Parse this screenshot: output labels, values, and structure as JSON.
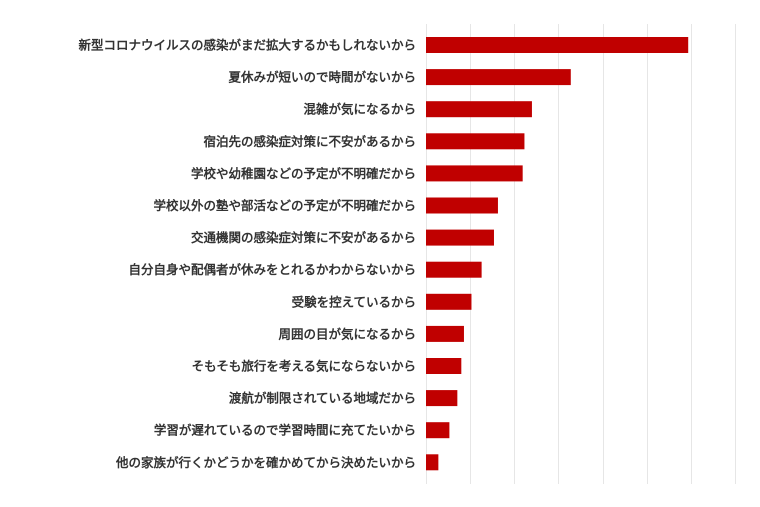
{
  "chart_data": {
    "type": "bar",
    "orientation": "horizontal",
    "categories": [
      "新型コロナウイルスの感染がまだ拡大するかもしれないから",
      "夏休みが短いので時間がないから",
      "混雑が気になるから",
      "宿泊先の感染症対策に不安があるから",
      "学校や幼稚園などの予定が不明確だから",
      "学校以外の塾や部活などの予定が不明確だから",
      "交通機関の感染症対策に不安があるから",
      "自分自身や配偶者が休みをとれるかわからないから",
      "受験を控えているから",
      "周囲の目が気になるから",
      "そもそも旅行を考える気にならないから",
      "渡航が制限されている地域だから",
      "学習が遅れているので学習時間に充てたいから",
      "他の家族が行くかどうかを確かめてから決めたいから"
    ],
    "values": [
      59.4,
      32.8,
      24.0,
      22.3,
      21.9,
      16.3,
      15.4,
      12.6,
      10.3,
      8.6,
      8.0,
      7.1,
      5.3,
      2.8
    ],
    "xlim": [
      0,
      70
    ],
    "grid": true,
    "bar_color": "#c00000",
    "title": "",
    "xlabel": "",
    "ylabel": ""
  }
}
